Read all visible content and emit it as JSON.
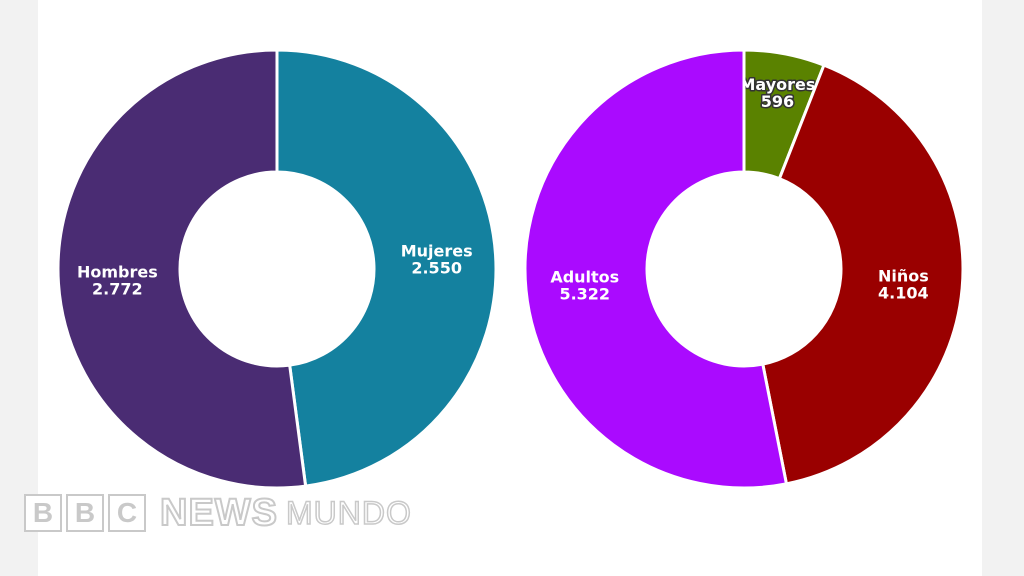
{
  "chart_data": [
    {
      "type": "pie",
      "donut": true,
      "start_angle_deg": 0,
      "slices": [
        {
          "label": "Mujeres",
          "value": 2550,
          "value_text": "2.550",
          "color": "#14819f"
        },
        {
          "label": "Hombres",
          "value": 2772,
          "value_text": "2.772",
          "color": "#4a2c73"
        }
      ]
    },
    {
      "type": "pie",
      "donut": true,
      "start_angle_deg": 0,
      "slices": [
        {
          "label": "Mayores",
          "value": 596,
          "value_text": "596",
          "color": "#5a8200",
          "label_outlined": true
        },
        {
          "label": "Niños",
          "value": 4104,
          "value_text": "4.104",
          "color": "#9a0000"
        },
        {
          "label": "Adultos",
          "value": 5322,
          "value_text": "5.322",
          "color": "#aa0aff"
        }
      ]
    }
  ],
  "brand": {
    "letters": [
      "B",
      "B",
      "C"
    ],
    "news": "NEWS",
    "edition": "MUNDO",
    "color": "#c9c9c9"
  }
}
